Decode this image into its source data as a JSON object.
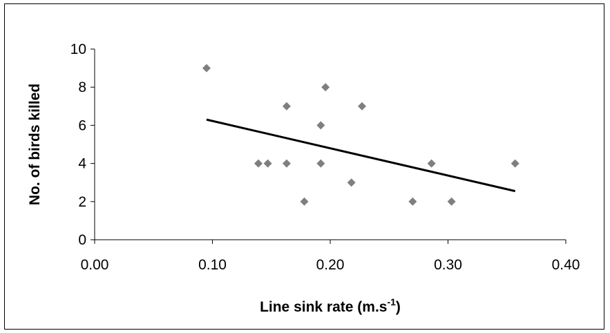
{
  "chart_data": {
    "type": "scatter",
    "xlabel": "Line sink rate (m.s",
    "xlabel_superscript": "-1",
    "xlabel_suffix": ")",
    "ylabel": "No. of birds killed",
    "xlim": [
      0.0,
      0.4
    ],
    "ylim": [
      0,
      10
    ],
    "x_ticks": [
      "0.00",
      "0.10",
      "0.20",
      "0.30",
      "0.40"
    ],
    "y_ticks": [
      "0",
      "2",
      "4",
      "6",
      "8",
      "10"
    ],
    "grid": false,
    "legend": "none",
    "marker": "diamond",
    "marker_color": "#7f7f7f",
    "line_color": "#000000",
    "series": [
      {
        "points": [
          {
            "x": 0.095,
            "y": 9
          },
          {
            "x": 0.139,
            "y": 4
          },
          {
            "x": 0.147,
            "y": 4
          },
          {
            "x": 0.163,
            "y": 7
          },
          {
            "x": 0.163,
            "y": 4
          },
          {
            "x": 0.178,
            "y": 2
          },
          {
            "x": 0.192,
            "y": 6
          },
          {
            "x": 0.192,
            "y": 4
          },
          {
            "x": 0.196,
            "y": 8
          },
          {
            "x": 0.218,
            "y": 3
          },
          {
            "x": 0.227,
            "y": 7
          },
          {
            "x": 0.27,
            "y": 2
          },
          {
            "x": 0.286,
            "y": 4
          },
          {
            "x": 0.303,
            "y": 2
          },
          {
            "x": 0.357,
            "y": 4
          }
        ]
      }
    ],
    "trendline": {
      "x_start": 0.095,
      "y_start": 6.3,
      "x_end": 0.357,
      "y_end": 2.55
    }
  }
}
